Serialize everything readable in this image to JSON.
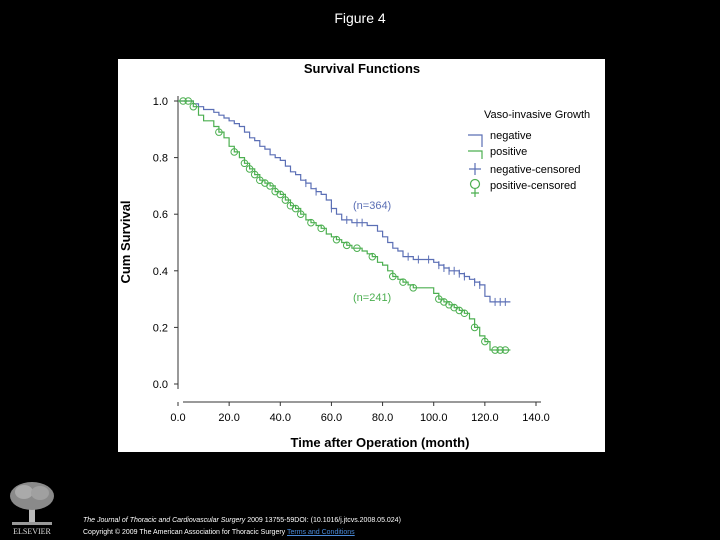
{
  "figure_label": "Figure 4",
  "chart_data": {
    "type": "line",
    "title": "Survival Functions",
    "xlabel": "Time after Operation (month)",
    "ylabel": "Cum Survival",
    "xlim": [
      0,
      140
    ],
    "ylim": [
      0,
      1
    ],
    "x_ticks": [
      "0.0",
      "20.0",
      "40.0",
      "60.0",
      "80.0",
      "100.0",
      "120.0",
      "140.0"
    ],
    "y_ticks": [
      "0.0",
      "0.2",
      "0.4",
      "0.6",
      "0.8",
      "1.0"
    ],
    "legend_title": "Vaso-invasive Growth",
    "legend_position": "top-right",
    "legend": [
      "negative",
      "positive",
      "negative-censored",
      "positive-censored"
    ],
    "annotations": [
      "(n=364)",
      "(n=241)"
    ],
    "series": [
      {
        "name": "negative",
        "color": "#5b6fb5",
        "x": [
          0,
          6,
          8,
          10,
          14,
          16,
          18,
          20,
          22,
          24,
          26,
          28,
          30,
          32,
          34,
          36,
          38,
          40,
          42,
          44,
          46,
          48,
          50,
          52,
          54,
          56,
          58,
          60,
          62,
          64,
          66,
          68,
          70,
          72,
          74,
          76,
          78,
          80,
          82,
          84,
          86,
          88,
          90,
          92,
          94,
          96,
          98,
          100,
          102,
          104,
          106,
          108,
          110,
          112,
          114,
          116,
          118,
          120,
          122,
          124,
          130
        ],
        "y": [
          1.0,
          0.99,
          0.98,
          0.97,
          0.96,
          0.95,
          0.94,
          0.93,
          0.92,
          0.91,
          0.89,
          0.87,
          0.86,
          0.84,
          0.83,
          0.81,
          0.8,
          0.79,
          0.77,
          0.75,
          0.74,
          0.72,
          0.71,
          0.69,
          0.68,
          0.67,
          0.65,
          0.62,
          0.6,
          0.58,
          0.58,
          0.57,
          0.57,
          0.57,
          0.56,
          0.56,
          0.54,
          0.52,
          0.5,
          0.48,
          0.47,
          0.45,
          0.45,
          0.44,
          0.44,
          0.44,
          0.44,
          0.43,
          0.42,
          0.41,
          0.4,
          0.4,
          0.39,
          0.38,
          0.37,
          0.36,
          0.35,
          0.31,
          0.29,
          0.29,
          0.29
        ],
        "censored_x": [
          50,
          54,
          60,
          66,
          70,
          72,
          90,
          94,
          98,
          102,
          104,
          106,
          108,
          110,
          112,
          116,
          118,
          124,
          126,
          128
        ]
      },
      {
        "name": "positive",
        "color": "#4caf50",
        "x": [
          0,
          6,
          8,
          10,
          14,
          16,
          18,
          20,
          22,
          24,
          26,
          28,
          30,
          32,
          34,
          36,
          38,
          40,
          42,
          44,
          46,
          48,
          50,
          52,
          54,
          56,
          58,
          60,
          62,
          64,
          66,
          68,
          70,
          72,
          74,
          76,
          78,
          80,
          82,
          84,
          86,
          88,
          90,
          92,
          94,
          96,
          98,
          100,
          102,
          104,
          106,
          108,
          110,
          112,
          114,
          116,
          118,
          120,
          122,
          124,
          130
        ],
        "y": [
          1.0,
          0.98,
          0.95,
          0.93,
          0.91,
          0.89,
          0.87,
          0.84,
          0.82,
          0.8,
          0.78,
          0.76,
          0.74,
          0.72,
          0.71,
          0.7,
          0.68,
          0.67,
          0.65,
          0.63,
          0.62,
          0.6,
          0.58,
          0.57,
          0.56,
          0.55,
          0.53,
          0.52,
          0.51,
          0.5,
          0.49,
          0.48,
          0.48,
          0.47,
          0.46,
          0.45,
          0.43,
          0.42,
          0.4,
          0.38,
          0.37,
          0.36,
          0.35,
          0.34,
          0.34,
          0.34,
          0.34,
          0.32,
          0.3,
          0.29,
          0.28,
          0.27,
          0.26,
          0.25,
          0.23,
          0.2,
          0.17,
          0.15,
          0.12,
          0.12,
          0.12
        ],
        "censored_x": [
          2,
          4,
          6,
          16,
          22,
          26,
          28,
          30,
          32,
          34,
          36,
          38,
          40,
          42,
          44,
          46,
          48,
          52,
          56,
          62,
          66,
          70,
          76,
          84,
          88,
          92,
          102,
          104,
          106,
          108,
          110,
          112,
          116,
          120,
          124,
          126,
          128
        ]
      }
    ]
  },
  "caption": {
    "journal": "The Journal of Thoracic and Cardiovascular Surgery",
    "citation": " 2009 13755-59DOI: (10.1016/j.jtcvs.2008.05.024)",
    "copyright": "Copyright © 2009 The American Association for Thoracic Surgery ",
    "terms_link": "Terms and Conditions"
  },
  "logo_text": "ELSEVIER"
}
